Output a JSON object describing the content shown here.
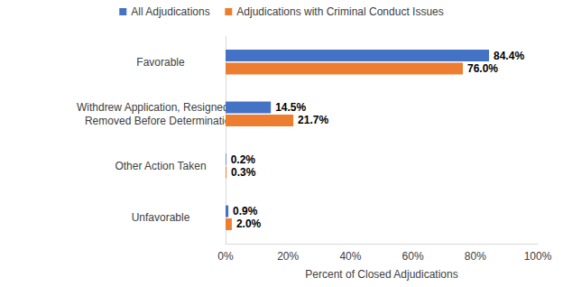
{
  "chart_data": {
    "type": "bar",
    "orientation": "horizontal",
    "categories": [
      "Favorable",
      "Withdrew Application, Resigned, or\nRemoved Before Determination",
      "Other Action Taken",
      "Unfavorable"
    ],
    "series": [
      {
        "name": "All Adjudications",
        "color": "#4472c4",
        "values": [
          84.4,
          14.5,
          0.2,
          0.9
        ],
        "value_labels": [
          "84.4%",
          "14.5%",
          "0.2%",
          "0.9%"
        ]
      },
      {
        "name": "Adjudications with Criminal Conduct Issues",
        "color": "#ed7d31",
        "values": [
          76.0,
          21.7,
          0.3,
          2.0
        ],
        "value_labels": [
          "76.0%",
          "21.7%",
          "0.3%",
          "2.0%"
        ]
      }
    ],
    "x_label": "Percent of Closed Adjudications",
    "xlim": [
      0,
      100
    ],
    "xticks": [
      {
        "value": 0,
        "label": "0%"
      },
      {
        "value": 20,
        "label": "20%"
      },
      {
        "value": 40,
        "label": "40%"
      },
      {
        "value": 60,
        "label": "60%"
      },
      {
        "value": 80,
        "label": "80%"
      },
      {
        "value": 100,
        "label": "100%"
      }
    ],
    "grid": false,
    "legend": "top",
    "data_labels": true
  }
}
